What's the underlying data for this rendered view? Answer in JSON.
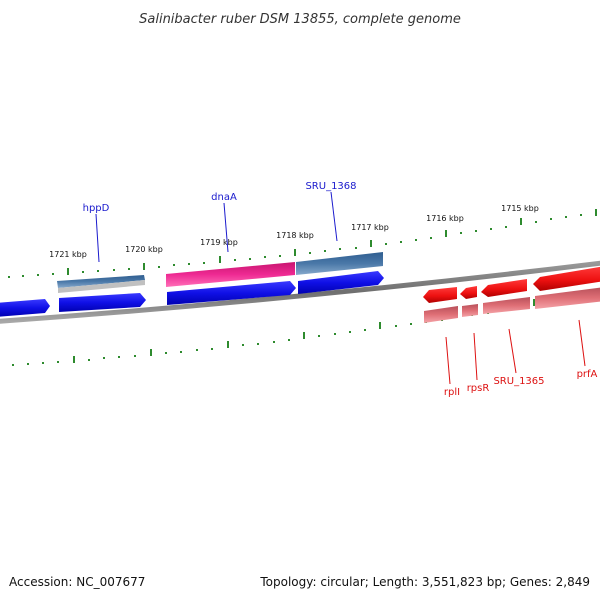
{
  "title": "Salinibacter ruber DSM 13855, complete genome",
  "colors": {
    "backbone": "#7a7a7a",
    "tick": "#2e8b2e",
    "forward_label": "#1a1acd",
    "reverse_label": "#dd1111",
    "forward_cds": "#1010e6",
    "reverse_cds": "#ee1111",
    "gene_pink": "#ee2a93",
    "gene_steel": "#4a78a8",
    "reverse_gene": "#df6f76"
  },
  "position_ticks": [
    "1721 kbp",
    "1720 kbp",
    "1719 kbp",
    "1718 kbp",
    "1717 kbp",
    "1716 kbp",
    "1715 kbp"
  ],
  "forward_genes": [
    {
      "name": "hppD",
      "icon": "gene-arrow-icon"
    },
    {
      "name": "dnaA",
      "icon": "gene-arrow-icon"
    },
    {
      "name": "SRU_1368",
      "icon": "gene-arrow-icon"
    }
  ],
  "reverse_genes": [
    {
      "name": "rplI",
      "icon": "gene-arrow-icon"
    },
    {
      "name": "rpsR",
      "icon": "gene-arrow-icon"
    },
    {
      "name": "SRU_1365",
      "icon": "gene-arrow-icon"
    },
    {
      "name": "prfA",
      "icon": "gene-arrow-icon"
    }
  ],
  "footer": {
    "accession": "Accession: NC_007677",
    "stats": "Topology: circular; Length: 3,551,823 bp; Genes: 2,849"
  }
}
